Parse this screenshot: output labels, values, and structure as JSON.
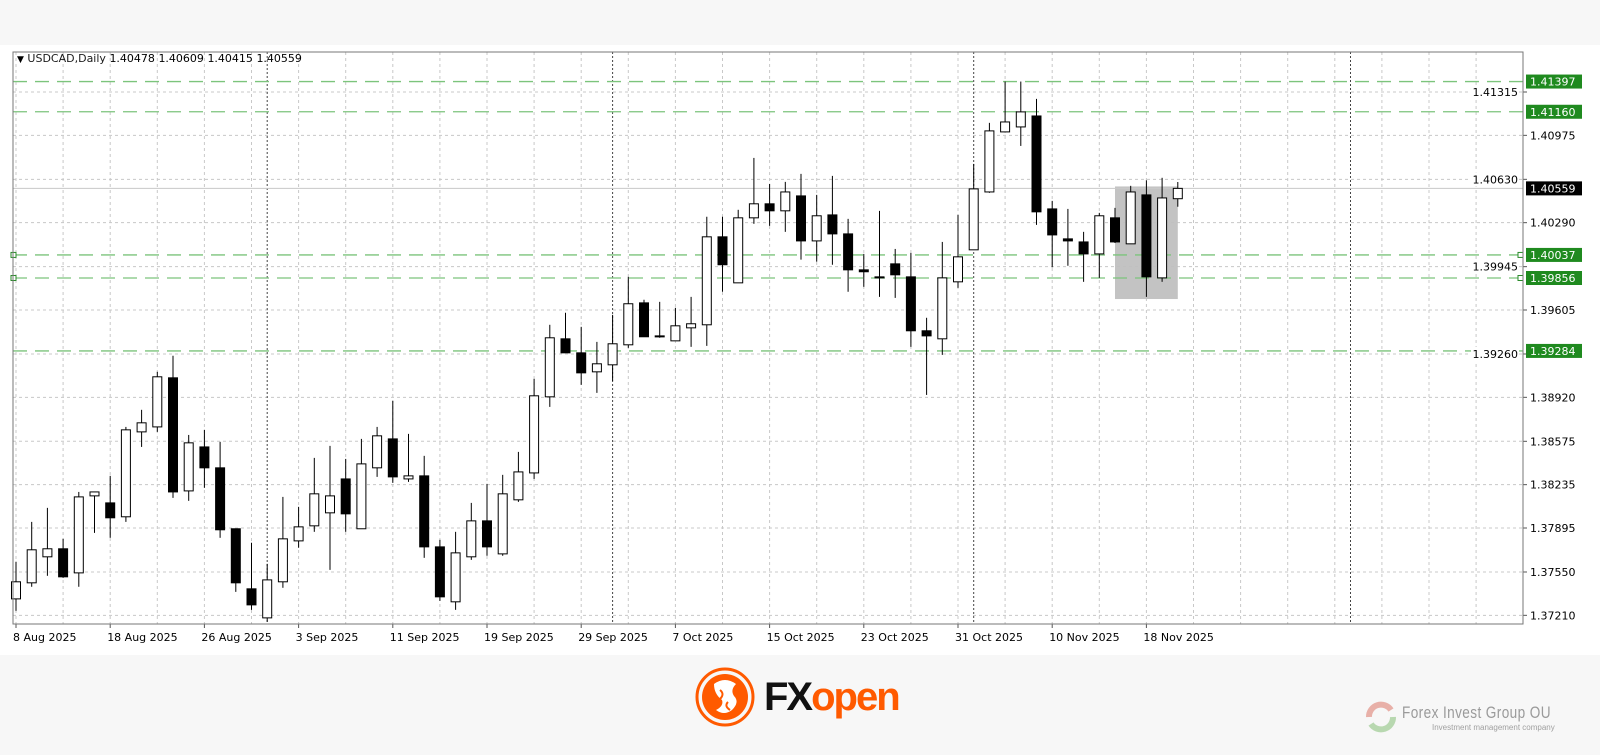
{
  "header": {
    "menu_icon": "triangle-down-icon",
    "symbol": "USDCAD,Daily",
    "open": "1.40478",
    "high": "1.40609",
    "low": "1.40415",
    "close": "1.40559"
  },
  "logos": {
    "fxopen": "FXopen",
    "fxopen_fx": "FX",
    "fxopen_open": "open",
    "fig_name": "Forex Invest Group OU",
    "fig_tagline": "Investment management company"
  },
  "colors": {
    "level_line": "#7cc47c",
    "level_label_bg": "#1f8a1f",
    "price_label_bg": "#000000",
    "bull_body": "#ffffff",
    "bear_body": "#000000",
    "highlight_box": "#c0c0c0",
    "grid": "#c8c8c8",
    "fxopen_orange": "#ff5a00"
  },
  "chart_data": {
    "type": "candlestick",
    "symbol": "USDCAD",
    "timeframe": "Daily",
    "ylim": [
      1.3705,
      1.4175
    ],
    "grid": true,
    "y_ticks": [
      "1.41315",
      "1.40975",
      "1.40630",
      "1.40290",
      "1.39945",
      "1.39605",
      "1.39260",
      "1.38920",
      "1.38575",
      "1.38235",
      "1.37895",
      "1.37550",
      "1.37210"
    ],
    "x_tick_labels": [
      "8 Aug 2025",
      "18 Aug 2025",
      "26 Aug 2025",
      "3 Sep 2025",
      "11 Sep 2025",
      "19 Sep 2025",
      "29 Sep 2025",
      "7 Oct 2025",
      "15 Oct 2025",
      "23 Oct 2025",
      "31 Oct 2025",
      "10 Nov 2025",
      "18 Nov 2025"
    ],
    "month_separators": [
      "1 Sep 2025",
      "1 Oct 2025",
      "3 Nov 2025",
      "1 Dec 2025"
    ],
    "current_price": "1.40559",
    "levels": [
      {
        "price": "1.41397",
        "marker": false
      },
      {
        "price": "1.41160",
        "marker": false
      },
      {
        "price": "1.40037",
        "marker": true
      },
      {
        "price": "1.39856",
        "marker": true
      },
      {
        "price": "1.39284",
        "marker": false
      }
    ],
    "highlight_box": {
      "from": "14 Nov 2025",
      "to": "20 Nov 2025",
      "top": 1.40574,
      "bottom": 1.39691
    },
    "candle_fields": [
      "date",
      "open",
      "high",
      "low",
      "close"
    ],
    "candles": [
      [
        "8 Aug 2025",
        1.37339,
        1.3763,
        1.37245,
        1.37473
      ],
      [
        "11 Aug 2025",
        1.37465,
        1.37943,
        1.37434,
        1.37724
      ],
      [
        "12 Aug 2025",
        1.37669,
        1.38053,
        1.3752,
        1.37732
      ],
      [
        "13 Aug 2025",
        1.37732,
        1.3781,
        1.37504,
        1.37512
      ],
      [
        "14 Aug 2025",
        1.37543,
        1.38178,
        1.37434,
        1.38139
      ],
      [
        "15 Aug 2025",
        1.38147,
        1.38178,
        1.37857,
        1.38178
      ],
      [
        "18 Aug 2025",
        1.38092,
        1.38304,
        1.37818,
        1.37975
      ],
      [
        "19 Aug 2025",
        1.37983,
        1.38688,
        1.37943,
        1.38665
      ],
      [
        "20 Aug 2025",
        1.38649,
        1.38822,
        1.38531,
        1.3872
      ],
      [
        "21 Aug 2025",
        1.38688,
        1.3912,
        1.38649,
        1.39081
      ],
      [
        "22 Aug 2025",
        1.39073,
        1.39246,
        1.38131,
        1.38178
      ],
      [
        "25 Aug 2025",
        1.38186,
        1.38625,
        1.38108,
        1.38563
      ],
      [
        "26 Aug 2025",
        1.38531,
        1.38665,
        1.3821,
        1.38367
      ],
      [
        "27 Aug 2025",
        1.38367,
        1.38571,
        1.37818,
        1.37881
      ],
      [
        "28 Aug 2025",
        1.37889,
        1.37889,
        1.37394,
        1.37465
      ],
      [
        "29 Aug 2025",
        1.37418,
        1.37779,
        1.37253,
        1.37292
      ],
      [
        "1 Sep 2025",
        1.3719,
        1.37614,
        1.37159,
        1.37488
      ],
      [
        "2 Sep 2025",
        1.37473,
        1.38139,
        1.37426,
        1.3781
      ],
      [
        "3 Sep 2025",
        1.37794,
        1.38061,
        1.3774,
        1.37904
      ],
      [
        "4 Sep 2025",
        1.37912,
        1.38445,
        1.37865,
        1.38163
      ],
      [
        "5 Sep 2025",
        1.38014,
        1.38539,
        1.37567,
        1.38147
      ],
      [
        "8 Sep 2025",
        1.3828,
        1.38437,
        1.37865,
        1.38006
      ],
      [
        "9 Sep 2025",
        1.37889,
        1.38594,
        1.37889,
        1.38398
      ],
      [
        "10 Sep 2025",
        1.38367,
        1.38688,
        1.38296,
        1.38618
      ],
      [
        "11 Sep 2025",
        1.38594,
        1.38892,
        1.38249,
        1.38296
      ],
      [
        "12 Sep 2025",
        1.3828,
        1.38633,
        1.38257,
        1.38304
      ],
      [
        "15 Sep 2025",
        1.38304,
        1.38461,
        1.37661,
        1.37747
      ],
      [
        "16 Sep 2025",
        1.37747,
        1.37802,
        1.37323,
        1.37355
      ],
      [
        "17 Sep 2025",
        1.37316,
        1.37865,
        1.37253,
        1.377
      ],
      [
        "18 Sep 2025",
        1.37669,
        1.38092,
        1.37645,
        1.37951
      ],
      [
        "19 Sep 2025",
        1.37951,
        1.38241,
        1.37677,
        1.37747
      ],
      [
        "22 Sep 2025",
        1.37692,
        1.38312,
        1.37677,
        1.38163
      ],
      [
        "23 Sep 2025",
        1.38116,
        1.38492,
        1.381,
        1.38335
      ],
      [
        "24 Sep 2025",
        1.38327,
        1.39065,
        1.3828,
        1.38932
      ],
      [
        "25 Sep 2025",
        1.38924,
        1.39489,
        1.38845,
        1.39387
      ],
      [
        "26 Sep 2025",
        1.39379,
        1.39583,
        1.39269,
        1.39269
      ],
      [
        "29 Sep 2025",
        1.39269,
        1.39473,
        1.39018,
        1.39112
      ],
      [
        "30 Sep 2025",
        1.3912,
        1.39355,
        1.38955,
        1.39183
      ],
      [
        "1 Oct 2025",
        1.39175,
        1.39567,
        1.39049,
        1.3934
      ],
      [
        "2 Oct 2025",
        1.39332,
        1.39865,
        1.39308,
        1.39654
      ],
      [
        "3 Oct 2025",
        1.39661,
        1.39685,
        1.39395,
        1.39395
      ],
      [
        "6 Oct 2025",
        1.39402,
        1.39669,
        1.39387,
        1.39395
      ],
      [
        "7 Oct 2025",
        1.39363,
        1.39622,
        1.39363,
        1.39481
      ],
      [
        "8 Oct 2025",
        1.39465,
        1.39708,
        1.39316,
        1.39497
      ],
      [
        "9 Oct 2025",
        1.39489,
        1.40336,
        1.39324,
        1.40179
      ],
      [
        "10 Oct 2025",
        1.40179,
        1.40336,
        1.39748,
        1.3996
      ],
      [
        "13 Oct 2025",
        1.39818,
        1.40391,
        1.39818,
        1.40328
      ],
      [
        "14 Oct 2025",
        1.40328,
        1.40798,
        1.40281,
        1.40438
      ],
      [
        "15 Oct 2025",
        1.40438,
        1.40594,
        1.40265,
        1.40383
      ],
      [
        "16 Oct 2025",
        1.40383,
        1.4061,
        1.40218,
        1.40531
      ],
      [
        "17 Oct 2025",
        1.405,
        1.40673,
        1.4,
        1.40147
      ],
      [
        "20 Oct 2025",
        1.40147,
        1.40508,
        1.39984,
        1.40344
      ],
      [
        "21 Oct 2025",
        1.40351,
        1.40657,
        1.3996,
        1.40202
      ],
      [
        "22 Oct 2025",
        1.40202,
        1.4032,
        1.39748,
        1.3992
      ],
      [
        "23 Oct 2025",
        1.3992,
        1.40045,
        1.39787,
        1.39905
      ],
      [
        "24 Oct 2025",
        1.39865,
        1.40383,
        1.39708,
        1.39857
      ],
      [
        "27 Oct 2025",
        1.39967,
        1.40084,
        1.397,
        1.39881
      ],
      [
        "28 Oct 2025",
        1.39865,
        1.40053,
        1.39316,
        1.39442
      ],
      [
        "29 Oct 2025",
        1.39442,
        1.39544,
        1.38939,
        1.39402
      ],
      [
        "30 Oct 2025",
        1.39379,
        1.40139,
        1.39253,
        1.39857
      ],
      [
        "31 Oct 2025",
        1.39826,
        1.40351,
        1.39779,
        1.40022
      ],
      [
        "3 Nov 2025",
        1.40077,
        1.40751,
        1.40077,
        1.40555
      ],
      [
        "4 Nov 2025",
        1.40531,
        1.41073,
        1.40524,
        1.4101
      ],
      [
        "5 Nov 2025",
        1.41002,
        1.41397,
        1.41002,
        1.4108
      ],
      [
        "6 Nov 2025",
        1.41041,
        1.41397,
        1.40892,
        1.41159
      ],
      [
        "7 Nov 2025",
        1.41127,
        1.41261,
        1.40273,
        1.40375
      ],
      [
        "10 Nov 2025",
        1.40398,
        1.40461,
        1.3994,
        1.40194
      ],
      [
        "11 Nov 2025",
        1.40163,
        1.40398,
        1.39952,
        1.40147
      ],
      [
        "12 Nov 2025",
        1.40139,
        1.40218,
        1.39826,
        1.40045
      ],
      [
        "13 Nov 2025",
        1.40045,
        1.40367,
        1.39857,
        1.40344
      ],
      [
        "14 Nov 2025",
        1.40328,
        1.40406,
        1.40131,
        1.40139
      ],
      [
        "17 Nov 2025",
        1.40124,
        1.40579,
        1.40124,
        1.40531
      ],
      [
        "18 Nov 2025",
        1.40508,
        1.40622,
        1.39708,
        1.39865
      ],
      [
        "19 Nov 2025",
        1.39857,
        1.40642,
        1.39826,
        1.40484
      ],
      [
        "20 Nov 2025",
        1.40478,
        1.40609,
        1.40415,
        1.40559
      ]
    ]
  }
}
